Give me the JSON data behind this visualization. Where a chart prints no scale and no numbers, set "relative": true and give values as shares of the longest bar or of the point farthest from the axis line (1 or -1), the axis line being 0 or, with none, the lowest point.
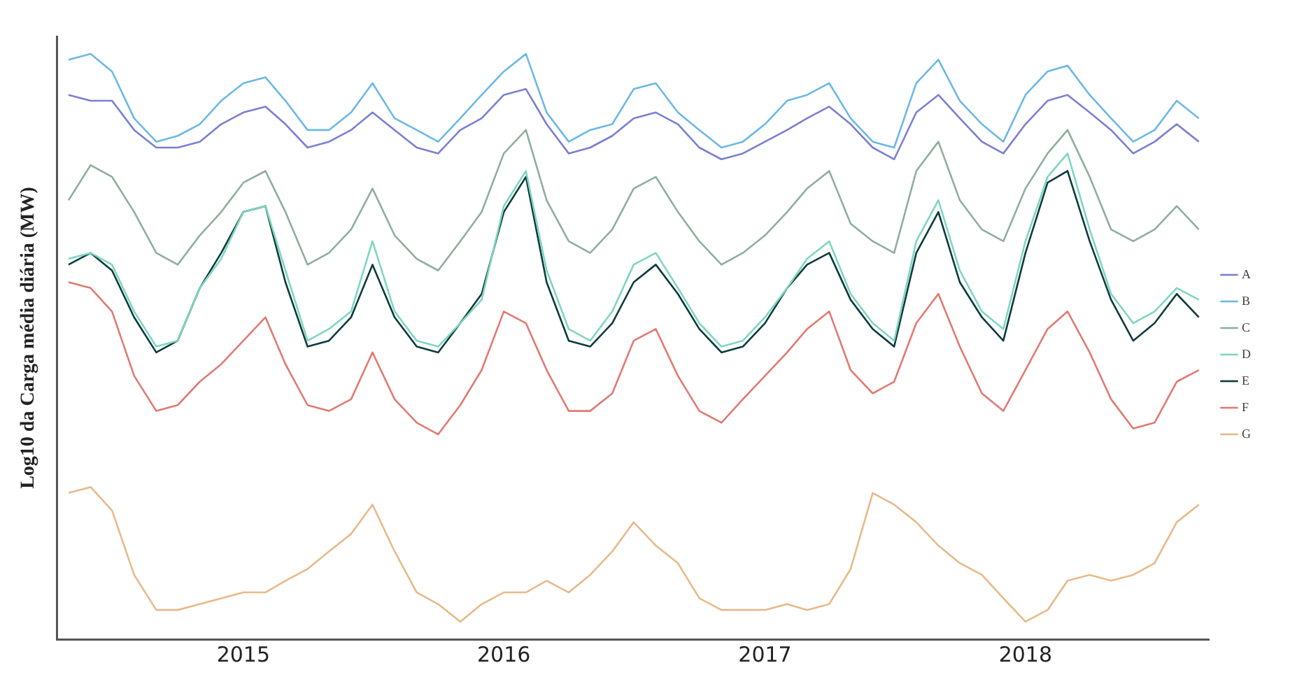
{
  "chart_data": {
    "type": "line",
    "relative": true,
    "ylabel": "Log10 da Carga média diária (MW)",
    "x": [
      "2014-05",
      "2014-06",
      "2014-07",
      "2014-08",
      "2014-09",
      "2014-10",
      "2014-11",
      "2014-12",
      "2015-01",
      "2015-02",
      "2015-03",
      "2015-04",
      "2015-05",
      "2015-06",
      "2015-07",
      "2015-08",
      "2015-09",
      "2015-10",
      "2015-11",
      "2015-12",
      "2016-01",
      "2016-02",
      "2016-03",
      "2016-04",
      "2016-05",
      "2016-06",
      "2016-07",
      "2016-08",
      "2016-09",
      "2016-10",
      "2016-11",
      "2016-12",
      "2017-01",
      "2017-02",
      "2017-03",
      "2017-04",
      "2017-05",
      "2017-06",
      "2017-07",
      "2017-08",
      "2017-09",
      "2017-10",
      "2017-11",
      "2017-12",
      "2018-01",
      "2018-02",
      "2018-03",
      "2018-04",
      "2018-05",
      "2018-06",
      "2018-07",
      "2018-08",
      "2018-09"
    ],
    "xlim": [
      "2014-04-15",
      "2018-09-15"
    ],
    "xticks": [
      "2015",
      "2016",
      "2017",
      "2018"
    ],
    "grid": false,
    "legend": "right",
    "marker": "none",
    "line_style": "solid",
    "series": [
      {
        "name": "A",
        "color": "#7b7fd1",
        "values": [
          0.93,
          0.92,
          0.92,
          0.87,
          0.84,
          0.84,
          0.85,
          0.88,
          0.9,
          0.91,
          0.88,
          0.84,
          0.85,
          0.87,
          0.9,
          0.87,
          0.84,
          0.83,
          0.87,
          0.89,
          0.93,
          0.94,
          0.88,
          0.83,
          0.84,
          0.86,
          0.89,
          0.9,
          0.88,
          0.84,
          0.82,
          0.83,
          0.85,
          0.87,
          0.89,
          0.91,
          0.88,
          0.84,
          0.82,
          0.9,
          0.93,
          0.89,
          0.85,
          0.83,
          0.88,
          0.92,
          0.93,
          0.9,
          0.87,
          0.83,
          0.85,
          0.88,
          0.85
        ]
      },
      {
        "name": "B",
        "color": "#6cb8e6",
        "values": [
          0.99,
          1.0,
          0.97,
          0.89,
          0.85,
          0.86,
          0.88,
          0.92,
          0.95,
          0.96,
          0.92,
          0.87,
          0.87,
          0.9,
          0.95,
          0.89,
          0.87,
          0.85,
          0.89,
          0.93,
          0.97,
          1.0,
          0.9,
          0.85,
          0.87,
          0.88,
          0.94,
          0.95,
          0.9,
          0.87,
          0.84,
          0.85,
          0.88,
          0.92,
          0.93,
          0.95,
          0.89,
          0.85,
          0.84,
          0.95,
          0.99,
          0.92,
          0.88,
          0.85,
          0.93,
          0.97,
          0.98,
          0.93,
          0.89,
          0.85,
          0.87,
          0.92,
          0.89
        ]
      },
      {
        "name": "C",
        "color": "#8fae9e",
        "values": [
          0.75,
          0.81,
          0.79,
          0.73,
          0.66,
          0.64,
          0.69,
          0.73,
          0.78,
          0.8,
          0.73,
          0.64,
          0.66,
          0.7,
          0.77,
          0.69,
          0.65,
          0.63,
          0.68,
          0.73,
          0.83,
          0.87,
          0.75,
          0.68,
          0.66,
          0.7,
          0.77,
          0.79,
          0.73,
          0.68,
          0.64,
          0.66,
          0.69,
          0.73,
          0.77,
          0.8,
          0.71,
          0.68,
          0.66,
          0.8,
          0.85,
          0.75,
          0.7,
          0.68,
          0.77,
          0.83,
          0.87,
          0.79,
          0.7,
          0.68,
          0.7,
          0.74,
          0.7
        ]
      },
      {
        "name": "D",
        "color": "#7fd6c0",
        "values": [
          0.65,
          0.66,
          0.64,
          0.56,
          0.5,
          0.51,
          0.6,
          0.65,
          0.73,
          0.74,
          0.63,
          0.51,
          0.53,
          0.56,
          0.68,
          0.56,
          0.51,
          0.5,
          0.54,
          0.58,
          0.74,
          0.8,
          0.63,
          0.53,
          0.51,
          0.56,
          0.64,
          0.66,
          0.6,
          0.54,
          0.5,
          0.51,
          0.55,
          0.6,
          0.65,
          0.68,
          0.59,
          0.54,
          0.51,
          0.68,
          0.75,
          0.63,
          0.56,
          0.53,
          0.68,
          0.79,
          0.83,
          0.7,
          0.59,
          0.54,
          0.56,
          0.6,
          0.58
        ]
      },
      {
        "name": "E",
        "color": "#0d3b3e",
        "values": [
          0.64,
          0.66,
          0.63,
          0.55,
          0.49,
          0.51,
          0.6,
          0.66,
          0.73,
          0.74,
          0.61,
          0.5,
          0.51,
          0.55,
          0.64,
          0.55,
          0.5,
          0.49,
          0.54,
          0.59,
          0.73,
          0.79,
          0.61,
          0.51,
          0.5,
          0.54,
          0.61,
          0.64,
          0.59,
          0.53,
          0.49,
          0.5,
          0.54,
          0.6,
          0.64,
          0.66,
          0.58,
          0.53,
          0.5,
          0.66,
          0.73,
          0.61,
          0.55,
          0.51,
          0.66,
          0.78,
          0.8,
          0.68,
          0.58,
          0.51,
          0.54,
          0.59,
          0.55
        ]
      },
      {
        "name": "F",
        "color": "#e07a73",
        "values": [
          0.61,
          0.6,
          0.56,
          0.45,
          0.39,
          0.4,
          0.44,
          0.47,
          0.51,
          0.55,
          0.47,
          0.4,
          0.39,
          0.41,
          0.49,
          0.41,
          0.37,
          0.35,
          0.4,
          0.46,
          0.56,
          0.54,
          0.46,
          0.39,
          0.39,
          0.42,
          0.51,
          0.53,
          0.45,
          0.39,
          0.37,
          0.41,
          0.45,
          0.49,
          0.53,
          0.56,
          0.46,
          0.42,
          0.44,
          0.54,
          0.59,
          0.5,
          0.42,
          0.39,
          0.46,
          0.53,
          0.56,
          0.49,
          0.41,
          0.36,
          0.37,
          0.44,
          0.46
        ]
      },
      {
        "name": "G",
        "color": "#e8b98a",
        "values": [
          0.25,
          0.26,
          0.22,
          0.11,
          0.05,
          0.05,
          0.06,
          0.07,
          0.08,
          0.08,
          0.1,
          0.12,
          0.15,
          0.18,
          0.23,
          0.15,
          0.08,
          0.06,
          0.03,
          0.06,
          0.08,
          0.08,
          0.1,
          0.08,
          0.11,
          0.15,
          0.2,
          0.16,
          0.13,
          0.07,
          0.05,
          0.05,
          0.05,
          0.06,
          0.05,
          0.06,
          0.12,
          0.25,
          0.23,
          0.2,
          0.16,
          0.13,
          0.11,
          0.07,
          0.03,
          0.05,
          0.1,
          0.11,
          0.1,
          0.11,
          0.13,
          0.2,
          0.23
        ]
      }
    ]
  }
}
